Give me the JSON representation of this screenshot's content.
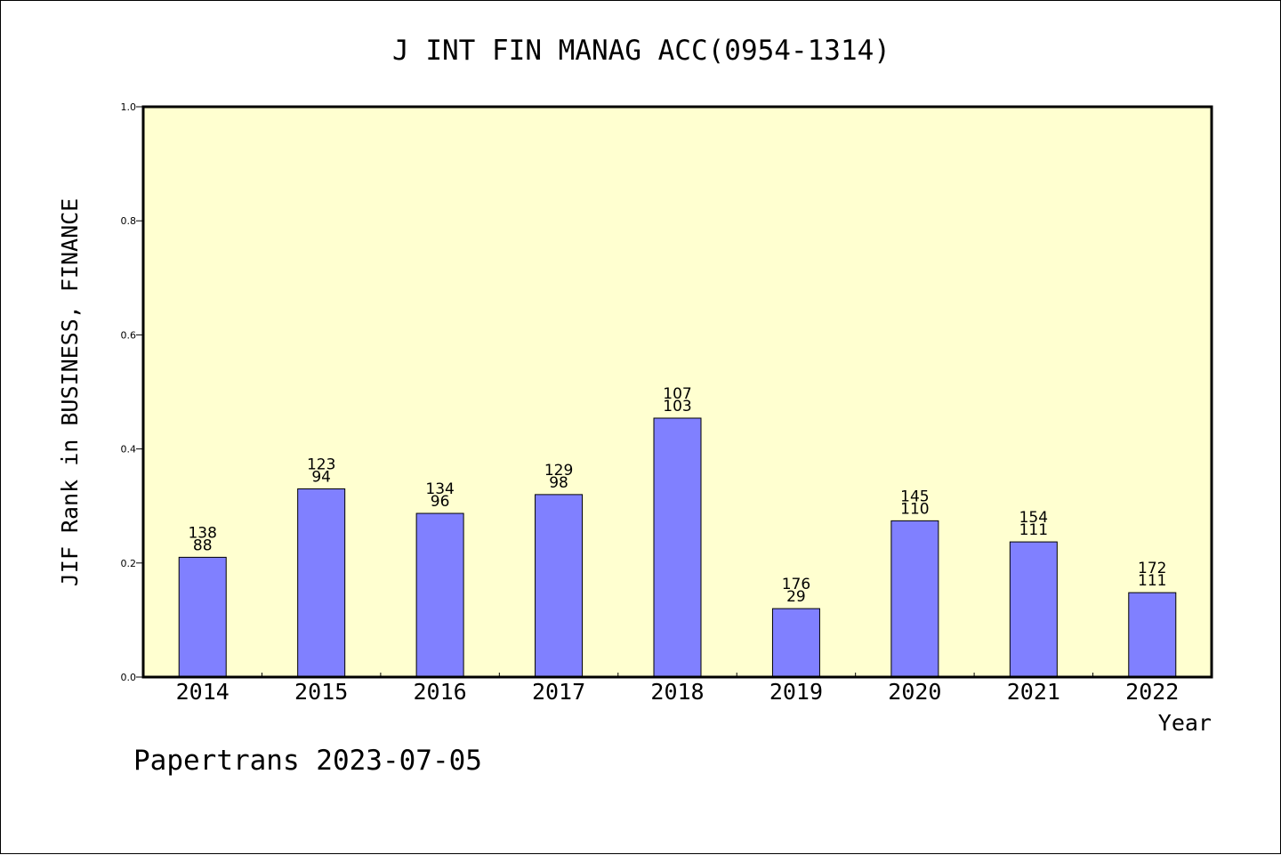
{
  "chart_data": {
    "type": "bar",
    "title": "J INT FIN MANAG ACC(0954-1314)",
    "xlabel": "Year",
    "ylabel": "JIF Rank in BUSINESS, FINANCE",
    "footer": "Papertrans 2023-07-05",
    "categories": [
      "2014",
      "2015",
      "2016",
      "2017",
      "2018",
      "2019",
      "2020",
      "2021",
      "2022"
    ],
    "values": [
      0.21,
      0.33,
      0.287,
      0.32,
      0.454,
      0.12,
      0.274,
      0.237,
      0.148
    ],
    "total_labels": [
      "138",
      "123",
      "134",
      "129",
      "107",
      "176",
      "145",
      "154",
      "172"
    ],
    "rank_labels": [
      "88",
      "94",
      "96",
      "98",
      "103",
      "29",
      "110",
      "111",
      "111"
    ],
    "ylim": [
      0,
      1.0
    ],
    "yticks": [
      "0.0",
      "0.2",
      "0.4",
      "0.6",
      "0.8",
      "1.0"
    ],
    "grid": false,
    "colors": {
      "plot_background": "#FFFFD0",
      "bar_fill": "#8080FF",
      "bar_stroke": "#000000",
      "axis": "#000000"
    }
  }
}
